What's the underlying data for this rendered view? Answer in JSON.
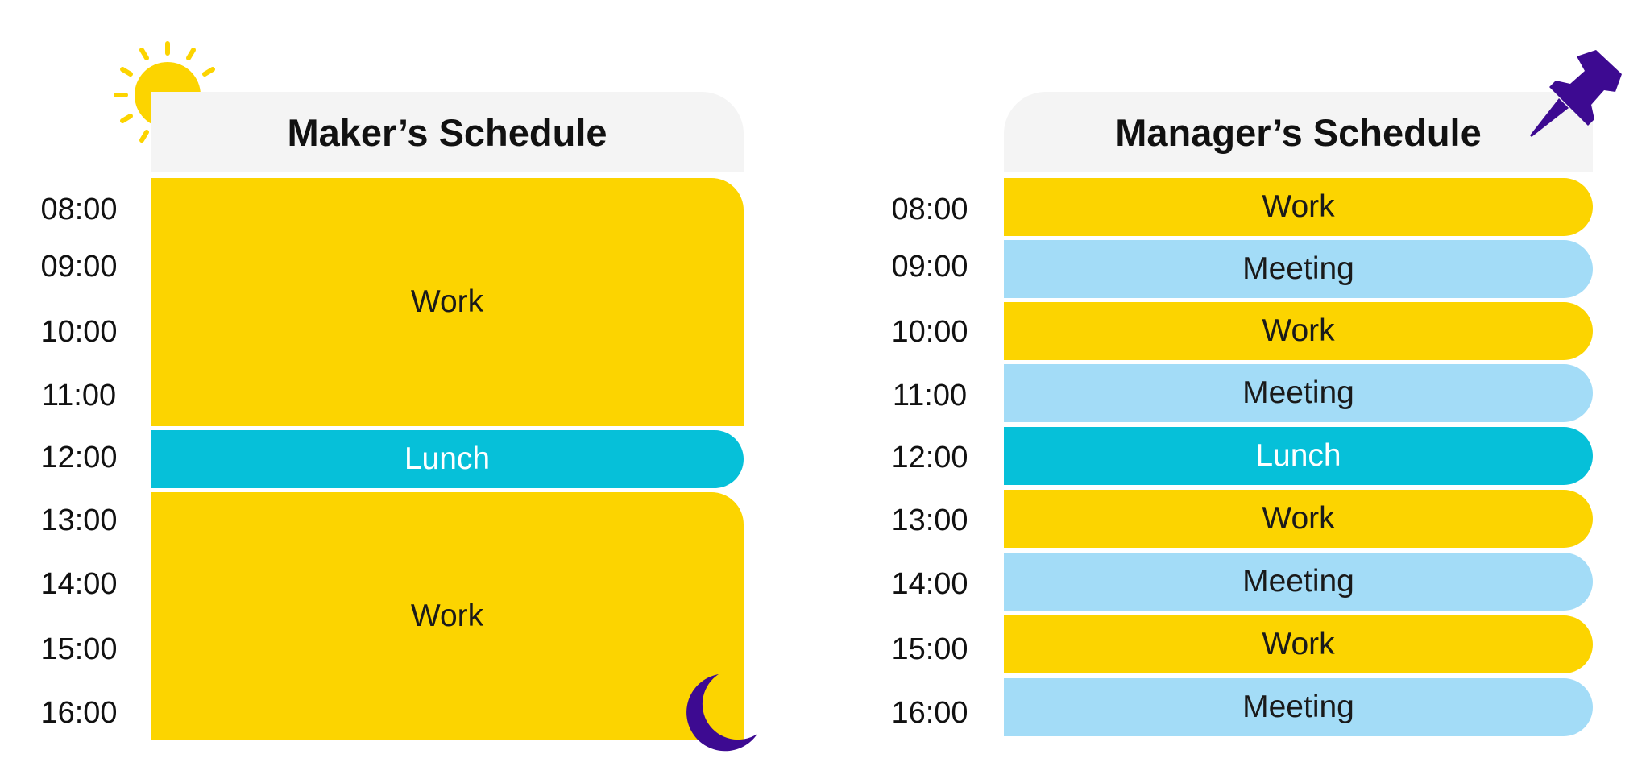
{
  "maker": {
    "title": "Maker’s Schedule",
    "times": [
      "08:00",
      "09:00",
      "10:00",
      "11:00",
      "12:00",
      "13:00",
      "14:00",
      "15:00",
      "16:00"
    ],
    "blocks": [
      {
        "label": "Work",
        "kind": "work"
      },
      {
        "label": "Lunch",
        "kind": "lunch"
      },
      {
        "label": "Work",
        "kind": "work"
      }
    ]
  },
  "manager": {
    "title": "Manager’s Schedule",
    "times": [
      "08:00",
      "09:00",
      "10:00",
      "11:00",
      "12:00",
      "13:00",
      "14:00",
      "15:00",
      "16:00"
    ],
    "blocks": [
      {
        "label": "Work",
        "kind": "work"
      },
      {
        "label": "Meeting",
        "kind": "meeting"
      },
      {
        "label": "Work",
        "kind": "work"
      },
      {
        "label": "Meeting",
        "kind": "meeting"
      },
      {
        "label": "Lunch",
        "kind": "lunch"
      },
      {
        "label": "Work",
        "kind": "work"
      },
      {
        "label": "Meeting",
        "kind": "meeting"
      },
      {
        "label": "Work",
        "kind": "work"
      },
      {
        "label": "Meeting",
        "kind": "meeting"
      }
    ]
  },
  "icons": {
    "sun": "sun-icon",
    "moon": "moon-icon",
    "pin": "pushpin-icon"
  },
  "colors": {
    "work": "#fcd400",
    "meeting": "#a3dcf7",
    "lunch": "#06c0d9",
    "header": "#f4f4f4",
    "accent": "#3d0a91"
  }
}
